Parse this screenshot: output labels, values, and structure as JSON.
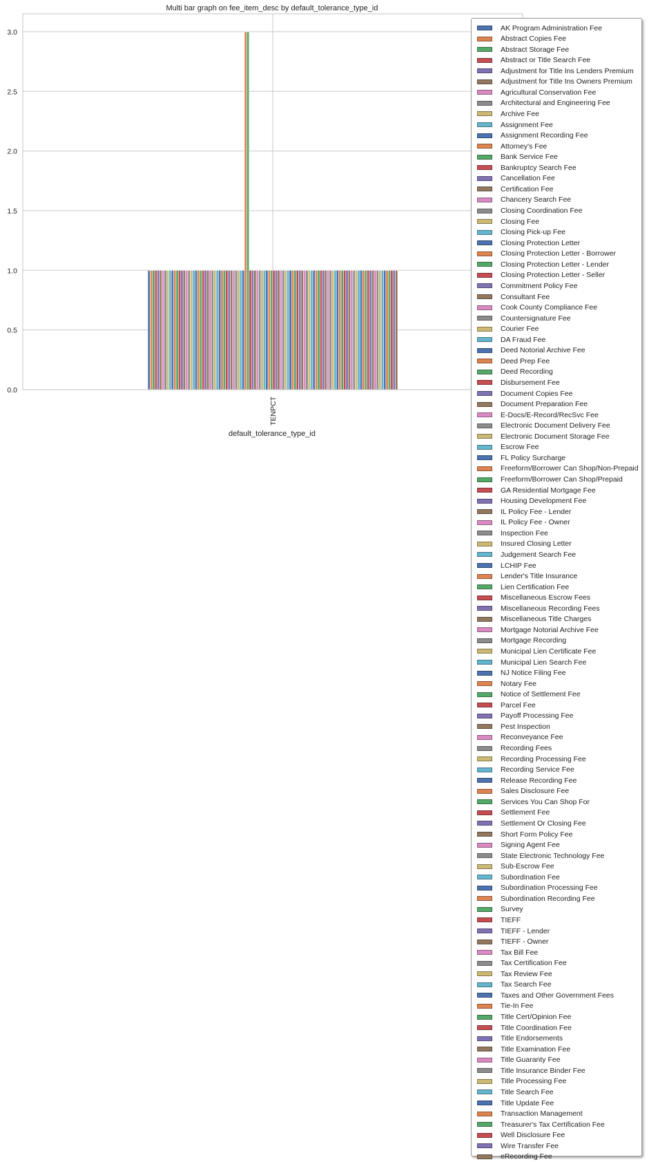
{
  "chart_data": {
    "type": "bar",
    "title": "Multi bar graph on fee_item_desc by default_tolerance_type_id",
    "xlabel": "default_tolerance_type_id",
    "ylabel": "",
    "categories": [
      "TENPCT"
    ],
    "ylim": [
      0,
      3.15
    ],
    "yticks": [
      "0.0",
      "0.5",
      "1.0",
      "1.5",
      "2.0",
      "2.5",
      "3.0"
    ],
    "grid": true,
    "legend_position": "right",
    "palette": [
      "#4c72b0",
      "#dd8452",
      "#55a868",
      "#c44e52",
      "#8172b3",
      "#937860",
      "#da8bc3",
      "#8c8c8c",
      "#ccb974",
      "#64b5cd"
    ],
    "series": [
      {
        "name": "AK Program Administration Fee",
        "values": [
          1
        ]
      },
      {
        "name": "Abstract Copies Fee",
        "values": [
          1
        ]
      },
      {
        "name": "Abstract Storage Fee",
        "values": [
          1
        ]
      },
      {
        "name": "Abstract or Title Search Fee",
        "values": [
          1
        ]
      },
      {
        "name": "Adjustment for Title Ins Lenders Premium",
        "values": [
          1
        ]
      },
      {
        "name": "Adjustment for Title Ins Owners Premium",
        "values": [
          1
        ]
      },
      {
        "name": "Agricultural Conservation Fee",
        "values": [
          1
        ]
      },
      {
        "name": "Architectural and Engineering Fee",
        "values": [
          1
        ]
      },
      {
        "name": "Archive Fee",
        "values": [
          1
        ]
      },
      {
        "name": "Assignment Fee",
        "values": [
          1
        ]
      },
      {
        "name": "Assignment Recording Fee",
        "values": [
          1
        ]
      },
      {
        "name": "Attorney's Fee",
        "values": [
          1
        ]
      },
      {
        "name": "Bank Service Fee",
        "values": [
          1
        ]
      },
      {
        "name": "Bankruptcy Search Fee",
        "values": [
          1
        ]
      },
      {
        "name": "Cancellation Fee",
        "values": [
          1
        ]
      },
      {
        "name": "Certification Fee",
        "values": [
          1
        ]
      },
      {
        "name": "Chancery Search Fee",
        "values": [
          1
        ]
      },
      {
        "name": "Closing Coordination Fee",
        "values": [
          1
        ]
      },
      {
        "name": "Closing Fee",
        "values": [
          1
        ]
      },
      {
        "name": "Closing Pick-up Fee",
        "values": [
          1
        ]
      },
      {
        "name": "Closing Protection Letter",
        "values": [
          1
        ]
      },
      {
        "name": "Closing Protection Letter - Borrower",
        "values": [
          1
        ]
      },
      {
        "name": "Closing Protection Letter - Lender",
        "values": [
          1
        ]
      },
      {
        "name": "Closing Protection Letter - Seller",
        "values": [
          1
        ]
      },
      {
        "name": "Commitment Policy Fee",
        "values": [
          1
        ]
      },
      {
        "name": "Consultant Fee",
        "values": [
          1
        ]
      },
      {
        "name": "Cook County Compliance Fee",
        "values": [
          1
        ]
      },
      {
        "name": "Countersignature Fee",
        "values": [
          1
        ]
      },
      {
        "name": "Courier Fee",
        "values": [
          1
        ]
      },
      {
        "name": "DA Fraud Fee",
        "values": [
          1
        ]
      },
      {
        "name": "Deed Notorial Archive Fee",
        "values": [
          1
        ]
      },
      {
        "name": "Deed Prep Fee",
        "values": [
          1
        ]
      },
      {
        "name": "Deed Recording",
        "values": [
          1
        ]
      },
      {
        "name": "Disbursement Fee",
        "values": [
          1
        ]
      },
      {
        "name": "Document Copies Fee",
        "values": [
          1
        ]
      },
      {
        "name": "Document Preparation Fee",
        "values": [
          1
        ]
      },
      {
        "name": "E-Docs/E-Record/RecSvc Fee",
        "values": [
          1
        ]
      },
      {
        "name": "Electronic Document Delivery Fee",
        "values": [
          1
        ]
      },
      {
        "name": "Electronic Document Storage Fee",
        "values": [
          1
        ]
      },
      {
        "name": "Escrow Fee",
        "values": [
          1
        ]
      },
      {
        "name": "FL Policy Surcharge",
        "values": [
          1
        ]
      },
      {
        "name": "Freeform/Borrower Can Shop/Non-Prepaid",
        "values": [
          3
        ]
      },
      {
        "name": "Freeform/Borrower Can Shop/Prepaid",
        "values": [
          3
        ]
      },
      {
        "name": "GA Residential Mortgage Fee",
        "values": [
          1
        ]
      },
      {
        "name": "Housing Development Fee",
        "values": [
          1
        ]
      },
      {
        "name": "IL Policy Fee - Lender",
        "values": [
          1
        ]
      },
      {
        "name": "IL Policy Fee - Owner",
        "values": [
          1
        ]
      },
      {
        "name": "Inspection Fee",
        "values": [
          1
        ]
      },
      {
        "name": "Insured Closing Letter",
        "values": [
          1
        ]
      },
      {
        "name": "Judgement Search Fee",
        "values": [
          1
        ]
      },
      {
        "name": "LCHIP Fee",
        "values": [
          1
        ]
      },
      {
        "name": "Lender's Title Insurance",
        "values": [
          1
        ]
      },
      {
        "name": "Lien Certification Fee",
        "values": [
          1
        ]
      },
      {
        "name": "Miscellaneous Escrow Fees",
        "values": [
          1
        ]
      },
      {
        "name": "Miscellaneous Recording Fees",
        "values": [
          1
        ]
      },
      {
        "name": "Miscellaneous Title Charges",
        "values": [
          1
        ]
      },
      {
        "name": "Mortgage Notorial Archive Fee",
        "values": [
          1
        ]
      },
      {
        "name": "Mortgage Recording",
        "values": [
          1
        ]
      },
      {
        "name": "Municipal Lien Certificate Fee",
        "values": [
          1
        ]
      },
      {
        "name": "Municipal Lien Search Fee",
        "values": [
          1
        ]
      },
      {
        "name": "NJ Notice Filing Fee",
        "values": [
          1
        ]
      },
      {
        "name": "Notary Fee",
        "values": [
          1
        ]
      },
      {
        "name": "Notice of Settlement Fee",
        "values": [
          1
        ]
      },
      {
        "name": "Parcel Fee",
        "values": [
          1
        ]
      },
      {
        "name": "Payoff Processing Fee",
        "values": [
          1
        ]
      },
      {
        "name": "Pest Inspection",
        "values": [
          1
        ]
      },
      {
        "name": "Reconveyance Fee",
        "values": [
          1
        ]
      },
      {
        "name": "Recording Fees",
        "values": [
          1
        ]
      },
      {
        "name": "Recording Processing Fee",
        "values": [
          1
        ]
      },
      {
        "name": "Recording Service Fee",
        "values": [
          1
        ]
      },
      {
        "name": "Release Recording Fee",
        "values": [
          1
        ]
      },
      {
        "name": "Sales Disclosure Fee",
        "values": [
          1
        ]
      },
      {
        "name": "Services You Can Shop For",
        "values": [
          1
        ]
      },
      {
        "name": "Settlement Fee",
        "values": [
          1
        ]
      },
      {
        "name": "Settlement Or Closing Fee",
        "values": [
          1
        ]
      },
      {
        "name": "Short Form Policy Fee",
        "values": [
          1
        ]
      },
      {
        "name": "Signing Agent Fee",
        "values": [
          1
        ]
      },
      {
        "name": "State Electronic Technology Fee",
        "values": [
          1
        ]
      },
      {
        "name": "Sub-Escrow Fee",
        "values": [
          1
        ]
      },
      {
        "name": "Subordination Fee",
        "values": [
          1
        ]
      },
      {
        "name": "Subordination Processing Fee",
        "values": [
          1
        ]
      },
      {
        "name": "Subordination Recording Fee",
        "values": [
          1
        ]
      },
      {
        "name": "Survey",
        "values": [
          1
        ]
      },
      {
        "name": "TIEFF",
        "values": [
          1
        ]
      },
      {
        "name": "TIEFF - Lender",
        "values": [
          1
        ]
      },
      {
        "name": "TIEFF - Owner",
        "values": [
          1
        ]
      },
      {
        "name": "Tax Bill Fee",
        "values": [
          1
        ]
      },
      {
        "name": "Tax Certification Fee",
        "values": [
          1
        ]
      },
      {
        "name": "Tax Review Fee",
        "values": [
          1
        ]
      },
      {
        "name": "Tax Search Fee",
        "values": [
          1
        ]
      },
      {
        "name": "Taxes and Other Government Fees",
        "values": [
          1
        ]
      },
      {
        "name": "Tie-In Fee",
        "values": [
          1
        ]
      },
      {
        "name": "Title Cert/Opinion Fee",
        "values": [
          1
        ]
      },
      {
        "name": "Title Coordination Fee",
        "values": [
          1
        ]
      },
      {
        "name": "Title Endorsements",
        "values": [
          1
        ]
      },
      {
        "name": "Title Examination Fee",
        "values": [
          1
        ]
      },
      {
        "name": "Title Guaranty Fee",
        "values": [
          1
        ]
      },
      {
        "name": "Title Insurance Binder Fee",
        "values": [
          1
        ]
      },
      {
        "name": "Title Processing Fee",
        "values": [
          1
        ]
      },
      {
        "name": "Title Search Fee",
        "values": [
          1
        ]
      },
      {
        "name": "Title Update Fee",
        "values": [
          1
        ]
      },
      {
        "name": "Transaction Management",
        "values": [
          1
        ]
      },
      {
        "name": "Treasurer's Tax Certification Fee",
        "values": [
          1
        ]
      },
      {
        "name": "Well Disclosure Fee",
        "values": [
          1
        ]
      },
      {
        "name": "Wire Transfer Fee",
        "values": [
          1
        ]
      },
      {
        "name": "eRecording Fee",
        "values": [
          1
        ]
      }
    ]
  }
}
